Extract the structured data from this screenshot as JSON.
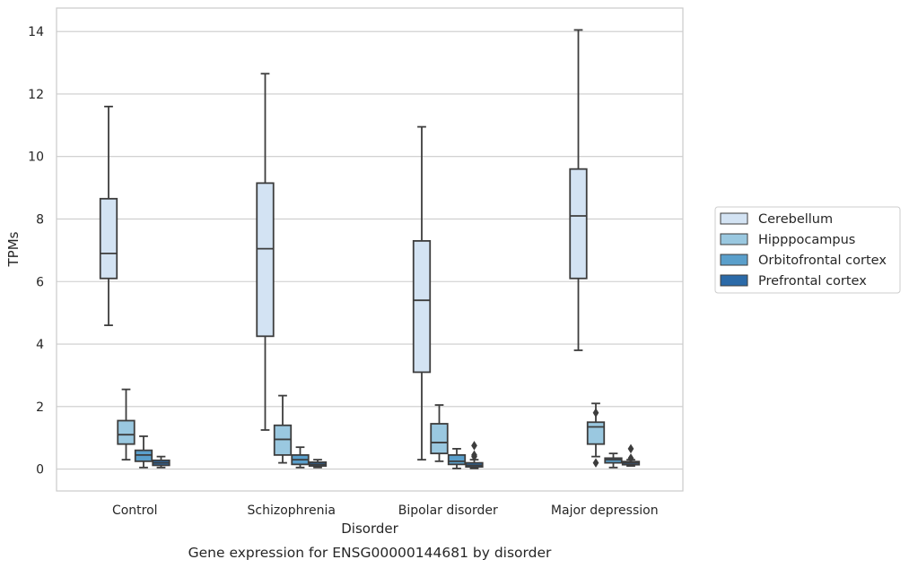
{
  "chart_data": {
    "type": "box",
    "caption": "Gene expression for ENSG00000144681 by disorder",
    "xlabel": "Disorder",
    "ylabel": "TPMs",
    "ylim": [
      -0.7,
      14.75
    ],
    "yticks": [
      0,
      2,
      4,
      6,
      8,
      10,
      12,
      14
    ],
    "grid": "horizontal",
    "legend_position": "right",
    "categories": [
      "Control",
      "Schizophrenia",
      "Bipolar disorder",
      "Major depression"
    ],
    "series": [
      {
        "name": "Cerebellum",
        "color": "#d3e3f3",
        "boxes": [
          {
            "whislo": 4.6,
            "q1": 6.1,
            "med": 6.9,
            "q3": 8.65,
            "whishi": 11.6,
            "fliers": []
          },
          {
            "whislo": 1.25,
            "q1": 4.25,
            "med": 7.05,
            "q3": 9.15,
            "whishi": 12.65,
            "fliers": []
          },
          {
            "whislo": 0.3,
            "q1": 3.1,
            "med": 5.4,
            "q3": 7.3,
            "whishi": 10.95,
            "fliers": []
          },
          {
            "whislo": 3.8,
            "q1": 6.1,
            "med": 8.1,
            "q3": 9.6,
            "whishi": 14.05,
            "fliers": []
          }
        ]
      },
      {
        "name": "Hipppocampus",
        "color": "#9ac8e0",
        "boxes": [
          {
            "whislo": 0.3,
            "q1": 0.8,
            "med": 1.1,
            "q3": 1.55,
            "whishi": 2.55,
            "fliers": []
          },
          {
            "whislo": 0.2,
            "q1": 0.45,
            "med": 0.95,
            "q3": 1.4,
            "whishi": 2.35,
            "fliers": []
          },
          {
            "whislo": 0.25,
            "q1": 0.5,
            "med": 0.85,
            "q3": 1.45,
            "whishi": 2.05,
            "fliers": []
          },
          {
            "whislo": 0.4,
            "q1": 0.8,
            "med": 1.35,
            "q3": 1.5,
            "whishi": 2.1,
            "fliers": [
              0.2,
              1.8
            ]
          }
        ]
      },
      {
        "name": "Orbitofrontal cortex",
        "color": "#5a9fcb",
        "boxes": [
          {
            "whislo": 0.05,
            "q1": 0.25,
            "med": 0.45,
            "q3": 0.6,
            "whishi": 1.05,
            "fliers": []
          },
          {
            "whislo": 0.05,
            "q1": 0.15,
            "med": 0.3,
            "q3": 0.45,
            "whishi": 0.7,
            "fliers": []
          },
          {
            "whislo": 0.02,
            "q1": 0.15,
            "med": 0.25,
            "q3": 0.45,
            "whishi": 0.65,
            "fliers": []
          },
          {
            "whislo": 0.05,
            "q1": 0.2,
            "med": 0.3,
            "q3": 0.35,
            "whishi": 0.5,
            "fliers": []
          }
        ]
      },
      {
        "name": "Prefrontal cortex",
        "color": "#2b6aa8",
        "boxes": [
          {
            "whislo": 0.05,
            "q1": 0.12,
            "med": 0.2,
            "q3": 0.28,
            "whishi": 0.4,
            "fliers": []
          },
          {
            "whislo": 0.05,
            "q1": 0.1,
            "med": 0.15,
            "q3": 0.22,
            "whishi": 0.3,
            "fliers": []
          },
          {
            "whislo": 0.02,
            "q1": 0.07,
            "med": 0.12,
            "q3": 0.2,
            "whishi": 0.3,
            "fliers": [
              0.4,
              0.45,
              0.75
            ]
          },
          {
            "whislo": 0.1,
            "q1": 0.14,
            "med": 0.2,
            "q3": 0.24,
            "whishi": 0.3,
            "fliers": [
              0.35,
              0.65
            ]
          }
        ]
      }
    ]
  }
}
